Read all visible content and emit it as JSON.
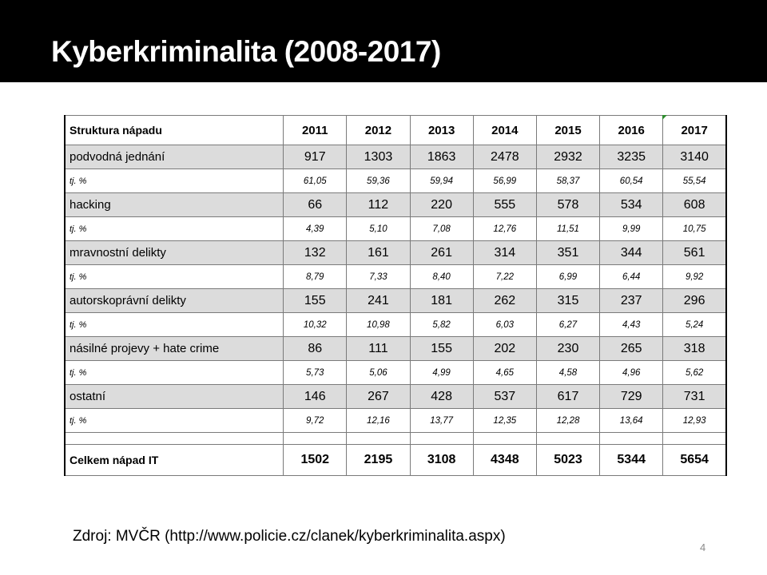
{
  "slide": {
    "title": "Kyberkriminalita (2008-2017)",
    "source": "Zdroj: MVČR (http://www.policie.cz/clanek/kyberkriminalita.aspx)",
    "page_number": "4"
  },
  "table": {
    "header_label": "Struktura nápadu",
    "years": [
      "2011",
      "2012",
      "2013",
      "2014",
      "2015",
      "2016",
      "2017"
    ],
    "rows": [
      {
        "label": "podvodná jednání",
        "values": [
          "917",
          "1303",
          "1863",
          "2478",
          "2932",
          "3235",
          "3140"
        ],
        "pct_label": "tj. %",
        "pct": [
          "61,05",
          "59,36",
          "59,94",
          "56,99",
          "58,37",
          "60,54",
          "55,54"
        ]
      },
      {
        "label": "hacking",
        "values": [
          "66",
          "112",
          "220",
          "555",
          "578",
          "534",
          "608"
        ],
        "pct_label": "tj. %",
        "pct": [
          "4,39",
          "5,10",
          "7,08",
          "12,76",
          "11,51",
          "9,99",
          "10,75"
        ]
      },
      {
        "label": "mravnostní delikty",
        "values": [
          "132",
          "161",
          "261",
          "314",
          "351",
          "344",
          "561"
        ],
        "pct_label": "tj. %",
        "pct": [
          "8,79",
          "7,33",
          "8,40",
          "7,22",
          "6,99",
          "6,44",
          "9,92"
        ]
      },
      {
        "label": "autorskoprávní delikty",
        "values": [
          "155",
          "241",
          "181",
          "262",
          "315",
          "237",
          "296"
        ],
        "pct_label": "tj. %",
        "pct": [
          "10,32",
          "10,98",
          "5,82",
          "6,03",
          "6,27",
          "4,43",
          "5,24"
        ]
      },
      {
        "label": "násilné projevy + hate crime",
        "values": [
          "86",
          "111",
          "155",
          "202",
          "230",
          "265",
          "318"
        ],
        "pct_label": "tj. %",
        "pct": [
          "5,73",
          "5,06",
          "4,99",
          "4,65",
          "4,58",
          "4,96",
          "5,62"
        ]
      },
      {
        "label": "ostatní",
        "values": [
          "146",
          "267",
          "428",
          "537",
          "617",
          "729",
          "731"
        ],
        "pct_label": "tj. %",
        "pct": [
          "9,72",
          "12,16",
          "13,77",
          "12,35",
          "12,28",
          "13,64",
          "12,93"
        ]
      }
    ],
    "total_label": "Celkem nápad IT",
    "totals": [
      "1502",
      "2195",
      "3108",
      "4348",
      "5023",
      "5344",
      "5654"
    ]
  }
}
